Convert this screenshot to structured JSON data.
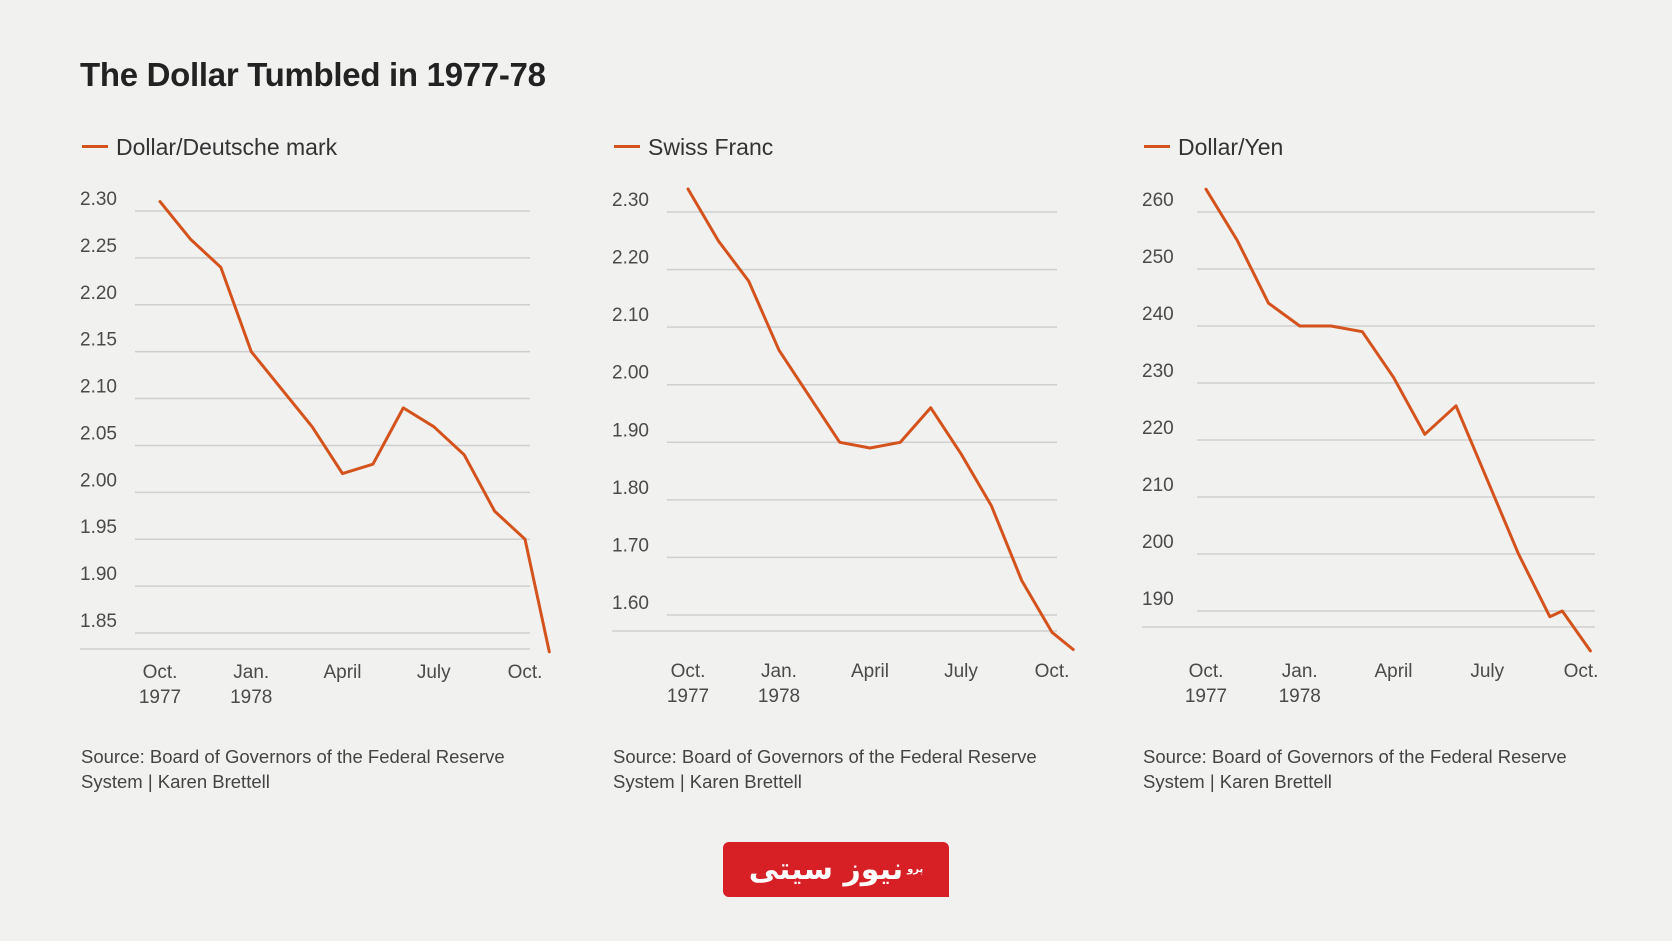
{
  "title": "The Dollar Tumbled in 1977-78",
  "colors": {
    "line": "#d4531c",
    "grid": "#cfcfcf",
    "background": "#f1f1f0",
    "logo": "#d71f26"
  },
  "logo": {
    "text": "نیوز سیتی",
    "small": "پرو"
  },
  "chart_data": [
    {
      "type": "line",
      "legend": "Dollar/Deutsche mark",
      "x_tick_labels": [
        {
          "line1": "Oct.",
          "line2": "1977",
          "x": 1
        },
        {
          "line1": "Jan.",
          "line2": "1978",
          "x": 4
        },
        {
          "line1": "April",
          "line2": "",
          "x": 7
        },
        {
          "line1": "July",
          "line2": "",
          "x": 10
        },
        {
          "line1": "Oct.",
          "line2": "",
          "x": 13
        }
      ],
      "y_ticks": [
        "2.30",
        "2.25",
        "2.20",
        "2.15",
        "2.10",
        "2.05",
        "2.00",
        "1.95",
        "1.90",
        "1.85"
      ],
      "ylim": [
        1.85,
        2.3
      ],
      "xlim": [
        -1,
        13
      ],
      "x": [
        1,
        2,
        3,
        4,
        5,
        6,
        7,
        8,
        9,
        10,
        11,
        12,
        13
      ],
      "values": [
        2.31,
        2.27,
        2.24,
        2.15,
        2.11,
        2.07,
        2.02,
        2.03,
        2.09,
        2.07,
        2.04,
        1.98,
        1.95
      ],
      "end_point": {
        "x": 13.8,
        "value": 1.83
      },
      "source": "Source: Board of Governors of the Federal Reserve System | Karen Brettell"
    },
    {
      "type": "line",
      "legend": "Swiss Franc",
      "x_tick_labels": [
        {
          "line1": "Oct.",
          "line2": "1977",
          "x": 1
        },
        {
          "line1": "Jan.",
          "line2": "1978",
          "x": 4
        },
        {
          "line1": "April",
          "line2": "",
          "x": 7
        },
        {
          "line1": "July",
          "line2": "",
          "x": 10
        },
        {
          "line1": "Oct.",
          "line2": "",
          "x": 13
        }
      ],
      "y_ticks": [
        "2.30",
        "2.20",
        "2.10",
        "2.00",
        "1.90",
        "1.80",
        "1.70",
        "1.60"
      ],
      "ylim": [
        1.6,
        2.3
      ],
      "xlim": [
        -1,
        13
      ],
      "x": [
        1,
        2,
        3,
        4,
        5,
        6,
        7,
        8,
        9,
        10,
        11,
        12,
        13
      ],
      "values": [
        2.34,
        2.25,
        2.18,
        2.06,
        1.98,
        1.9,
        1.89,
        1.9,
        1.96,
        1.88,
        1.79,
        1.66,
        1.57
      ],
      "end_point": {
        "x": 13.7,
        "value": 1.54
      },
      "source": "Source: Board of Governors of the Federal Reserve System | Karen Brettell"
    },
    {
      "type": "line",
      "legend": "Dollar/Yen",
      "x_tick_labels": [
        {
          "line1": "Oct.",
          "line2": "1977",
          "x": 1
        },
        {
          "line1": "Jan.",
          "line2": "1978",
          "x": 4
        },
        {
          "line1": "April",
          "line2": "",
          "x": 7
        },
        {
          "line1": "July",
          "line2": "",
          "x": 10
        },
        {
          "line1": "Oct.",
          "line2": "",
          "x": 13
        }
      ],
      "y_ticks": [
        "260",
        "250",
        "240",
        "230",
        "220",
        "210",
        "200",
        "190"
      ],
      "ylim": [
        190,
        260
      ],
      "xlim": [
        -1,
        13
      ],
      "x": [
        1,
        2,
        3,
        4,
        5,
        6,
        7,
        8,
        9,
        10,
        11,
        12
      ],
      "values": [
        264,
        255,
        244,
        240,
        240,
        239,
        231,
        221,
        226,
        213,
        200,
        189
      ],
      "end_point": {
        "x": 13.3,
        "value": 183
      },
      "extra_points": [
        {
          "x": 12.4,
          "value": 190
        }
      ],
      "source": "Source: Board of Governors of the Federal Reserve System | Karen Brettell"
    }
  ]
}
